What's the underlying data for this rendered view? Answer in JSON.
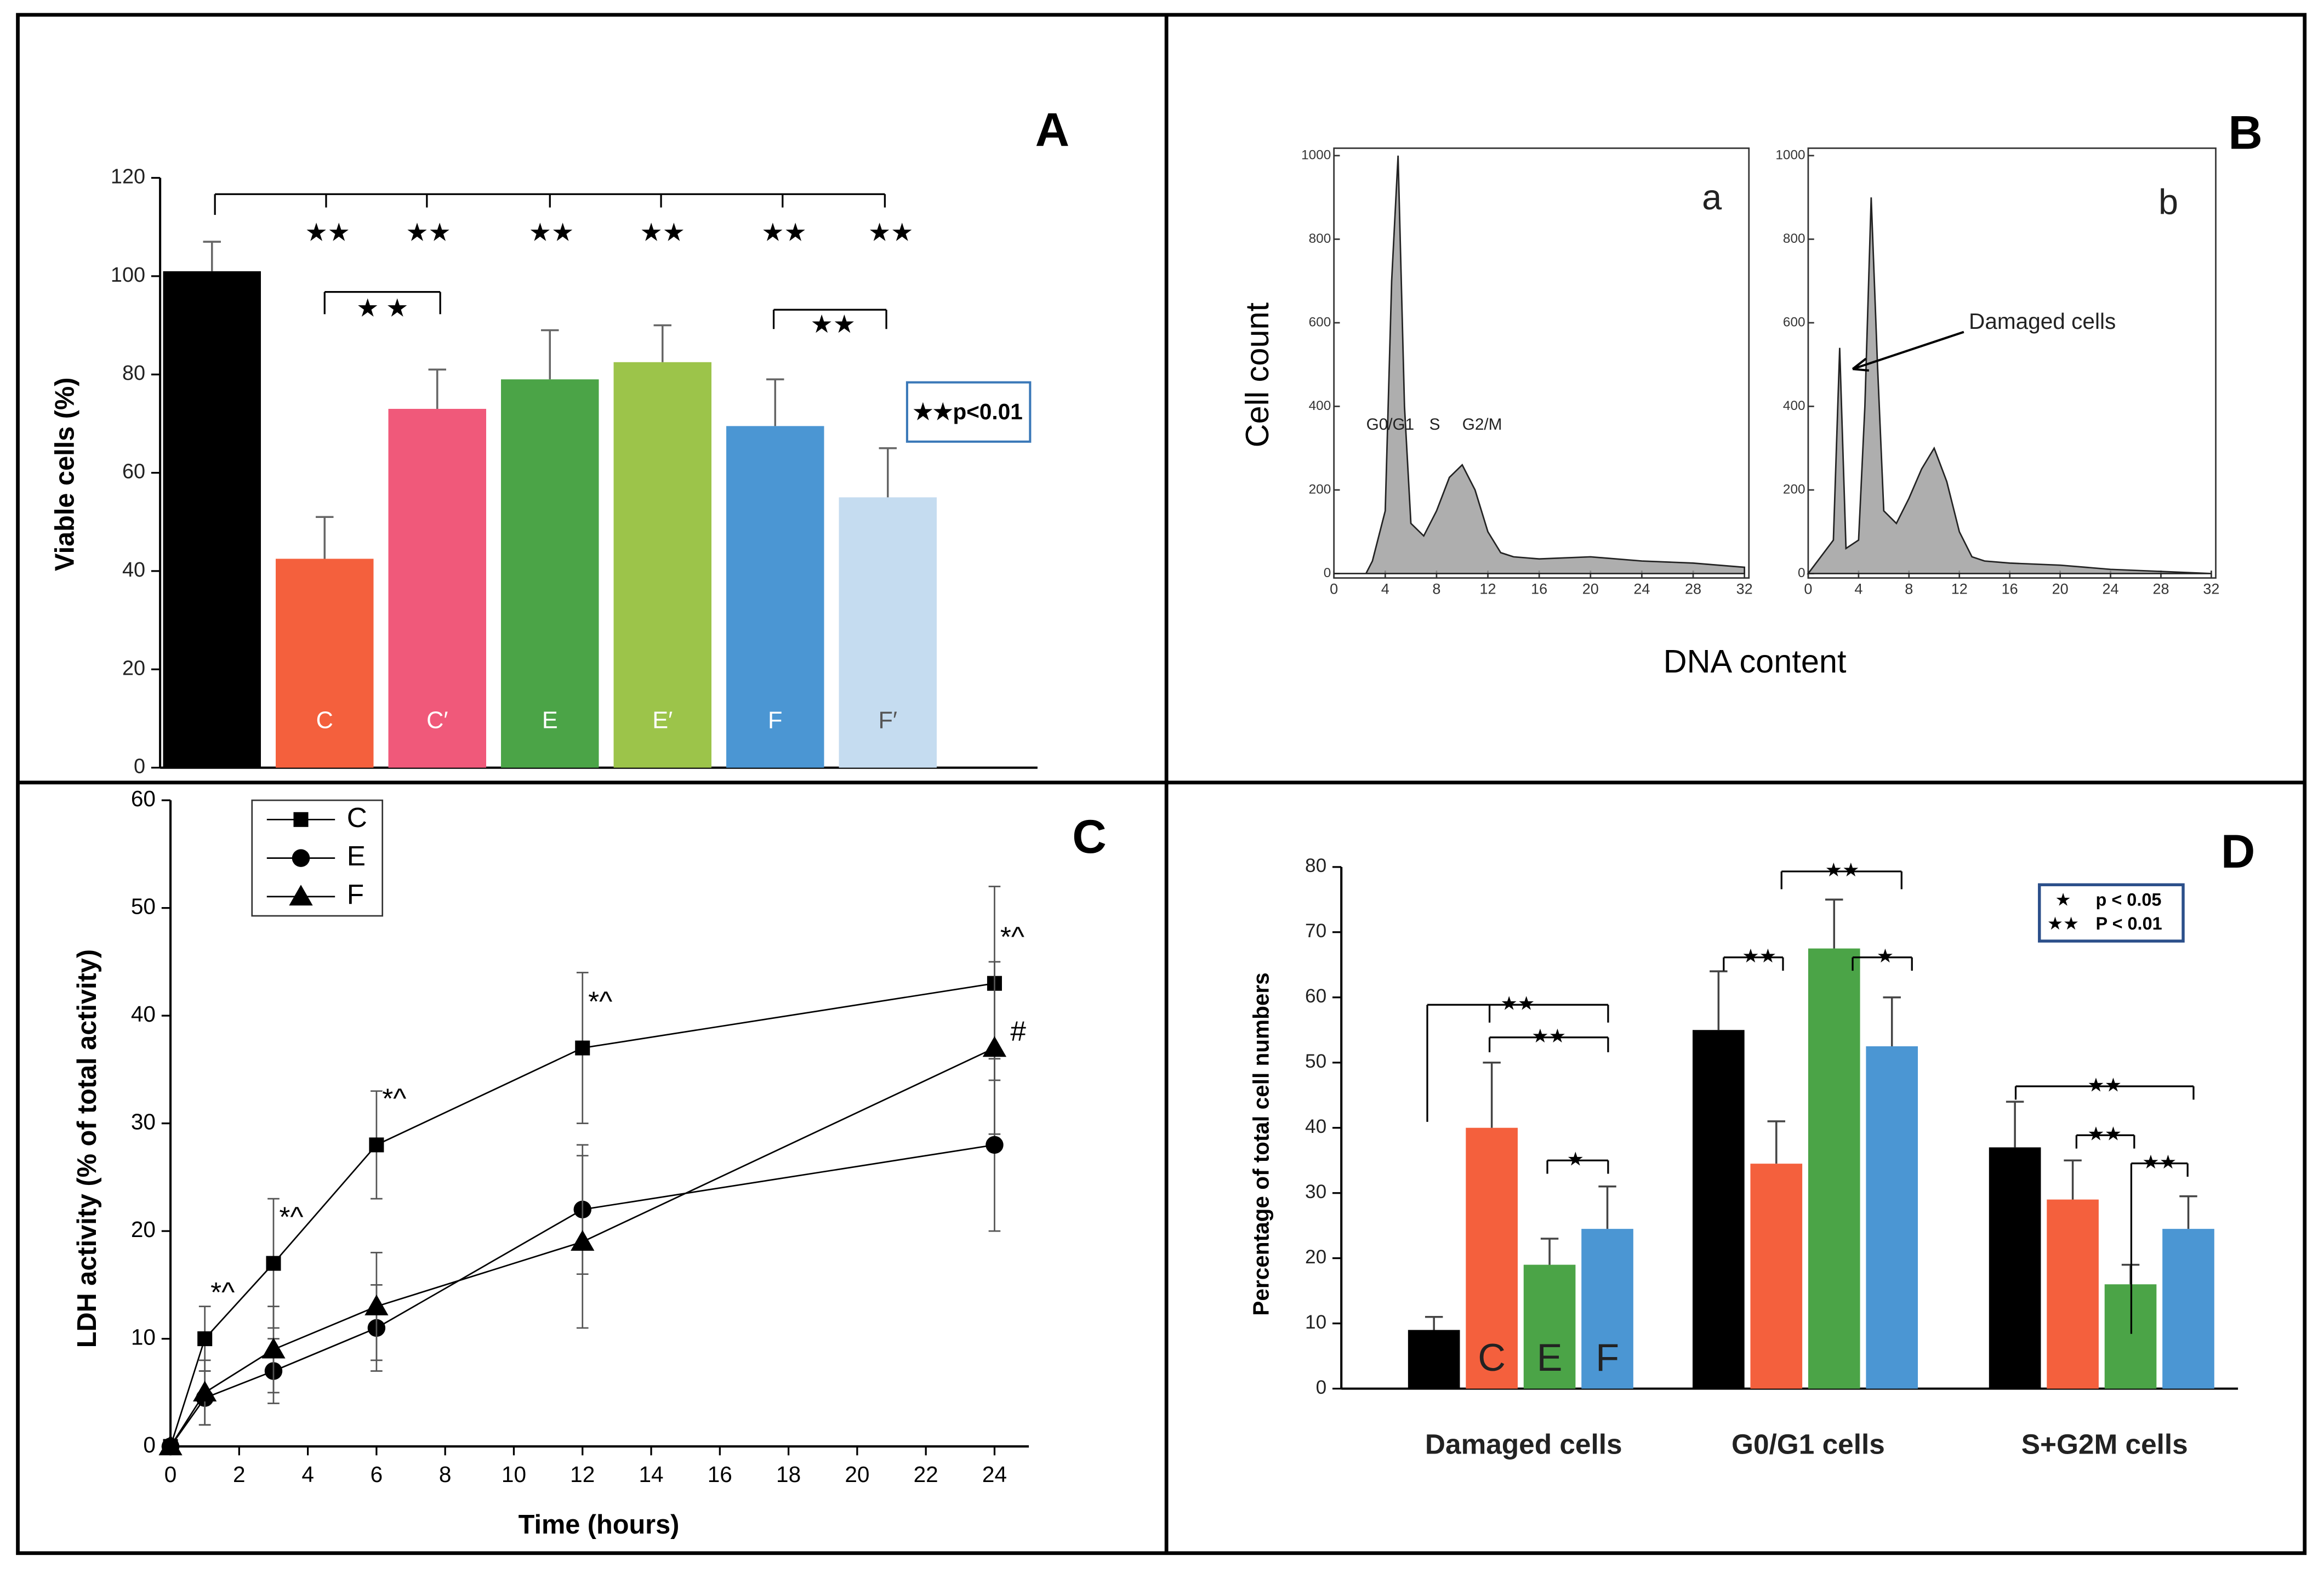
{
  "chart_data": [
    {
      "type": "bar",
      "title": "A",
      "ylabel": "Viable cells (%)",
      "categories": [
        null,
        "C",
        "C′",
        "E",
        "E′",
        "F",
        "F′"
      ],
      "values": [
        101,
        42.5,
        73,
        79,
        82.5,
        69.5,
        55
      ],
      "errors": [
        6,
        8.5,
        8,
        10,
        7.5,
        9.5,
        10
      ],
      "colors": [
        "#000000",
        "#f4603d",
        "#f0597a",
        "#4ba447",
        "#9cc44a",
        "#4b96d3",
        "#c5dcf0"
      ],
      "ylim": [
        0,
        120
      ],
      "yticks": [
        0,
        20,
        40,
        60,
        80,
        100,
        120
      ],
      "annotations": [
        "★★",
        "★★",
        "★★",
        "★★",
        "★★",
        "★★",
        "★ ★",
        "★★"
      ],
      "legend_text": "★★p<0.01"
    },
    {
      "type": "area",
      "title": "B",
      "xlabel": "DNA content",
      "ylabel": "Cell count",
      "x": [
        0,
        2,
        2.5,
        3,
        4,
        4.5,
        5,
        5.5,
        6,
        7,
        8,
        9,
        10,
        11,
        12,
        13,
        14,
        16,
        20,
        24,
        28,
        32
      ],
      "series": [
        {
          "name": "a",
          "color": "#9a9a9a",
          "values": [
            0,
            0,
            0,
            30,
            150,
            700,
            1000,
            400,
            120,
            90,
            150,
            230,
            260,
            200,
            100,
            50,
            40,
            35,
            40,
            30,
            25,
            15
          ]
        },
        {
          "name": "b",
          "color": "#9a9a9a",
          "values": [
            0,
            80,
            540,
            60,
            80,
            400,
            900,
            500,
            150,
            120,
            180,
            250,
            300,
            220,
            100,
            40,
            30,
            25,
            20,
            10,
            5,
            0
          ]
        }
      ],
      "xlim": [
        0,
        32
      ],
      "xticks": [
        0,
        4,
        8,
        12,
        16,
        20,
        24,
        28,
        32
      ],
      "ylim": [
        0,
        1000
      ],
      "yticks": [
        0,
        200,
        400,
        600,
        800,
        1000
      ],
      "annotations": [
        "G0/G1",
        "S",
        "G2/M",
        "Damaged cells"
      ]
    },
    {
      "type": "line",
      "title": "C",
      "xlabel": "Time (hours)",
      "ylabel": "LDH activity (% of total activity)",
      "x": [
        0,
        1,
        3,
        6,
        12,
        24
      ],
      "series": [
        {
          "name": "C",
          "color": "#000000",
          "marker": "square",
          "values": [
            0,
            10,
            17,
            28,
            37,
            43
          ],
          "errors": [
            0,
            3,
            6,
            5,
            7,
            9
          ]
        },
        {
          "name": "E",
          "color": "#000000",
          "marker": "circle",
          "values": [
            0,
            4.5,
            7,
            11,
            22,
            28
          ],
          "errors": [
            0,
            2.5,
            3,
            4,
            6,
            8
          ]
        },
        {
          "name": "F",
          "color": "#000000",
          "marker": "triangle",
          "values": [
            0,
            5,
            9,
            13,
            19,
            37
          ],
          "errors": [
            0,
            3,
            4,
            5,
            8,
            8
          ]
        }
      ],
      "xlim": [
        0,
        25
      ],
      "xticks": [
        0,
        2,
        4,
        6,
        8,
        10,
        12,
        14,
        16,
        18,
        20,
        22,
        24
      ],
      "ylim": [
        0,
        60
      ],
      "yticks": [
        0,
        10,
        20,
        30,
        40,
        50,
        60
      ],
      "annotations": [
        "*^",
        "*^",
        "*^",
        "*^",
        "*^",
        "#"
      ]
    },
    {
      "type": "bar",
      "title": "D",
      "ylabel": "Percentage of total cell numbers",
      "categories": [
        "Damaged cells",
        "G0/G1 cells",
        "S+G2M cells"
      ],
      "series": [
        {
          "name": null,
          "color": "#000000",
          "values": [
            9,
            55,
            37
          ],
          "errors": [
            2,
            9,
            7
          ]
        },
        {
          "name": "C",
          "color": "#f4603d",
          "values": [
            40,
            34.5,
            29
          ],
          "errors": [
            10,
            6.5,
            6
          ]
        },
        {
          "name": "E",
          "color": "#4ba447",
          "values": [
            19,
            67.5,
            16
          ],
          "errors": [
            4,
            7.5,
            3
          ]
        },
        {
          "name": "F",
          "color": "#4b96d3",
          "values": [
            24.5,
            52.5,
            24.5
          ],
          "errors": [
            6.5,
            7.5,
            5
          ]
        }
      ],
      "ylim": [
        0,
        80
      ],
      "yticks": [
        0,
        10,
        20,
        30,
        40,
        50,
        60,
        70,
        80
      ],
      "annotations": [
        "★★",
        "★★",
        "★",
        "★★",
        "★★",
        "★",
        "★★",
        "★★",
        "★★"
      ],
      "legend": [
        {
          "symbol": "★",
          "text": "p < 0.05"
        },
        {
          "symbol": "★★",
          "text": "P < 0.01"
        }
      ]
    }
  ]
}
